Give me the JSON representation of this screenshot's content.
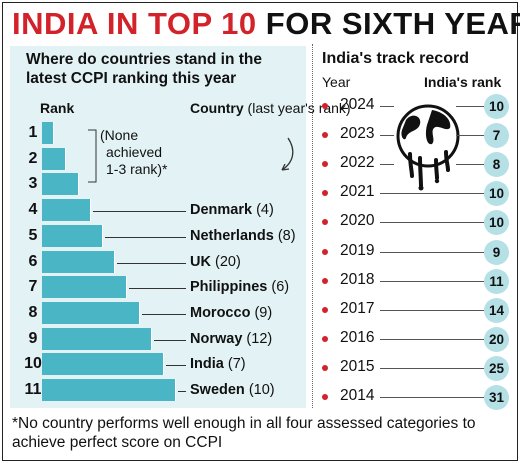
{
  "header": {
    "title_red": "INDIA IN TOP 10",
    "title_black": "FOR SIXTH YEAR"
  },
  "left_panel": {
    "heading": "Where do countries stand in the latest CCPI ranking this year",
    "rank_header": "Rank",
    "country_header_bold": "Country",
    "country_header_rest": " (last year's rank)",
    "none_note_line1": "(None",
    "none_note_line2": "achieved",
    "none_note_line3": "1-3 rank)*"
  },
  "right_panel": {
    "heading": "India's track record",
    "year_header": "Year",
    "rank_header": "India's rank"
  },
  "footnote": "*No country performs well enough in all four assessed categories to achieve perfect score on CCPI",
  "colors": {
    "accent": "#d2232a",
    "bar": "#4ab5c5",
    "panel": "#e3f3f5",
    "badge": "#b4e0e6"
  },
  "chart_data": [
    {
      "type": "bar",
      "title": "Where do countries stand in the latest CCPI ranking this year",
      "ranks": [
        1,
        2,
        3,
        4,
        5,
        6,
        7,
        8,
        9,
        10,
        11
      ],
      "countries": [
        {
          "rank": 4,
          "name": "Denmark",
          "last_year": "(4)"
        },
        {
          "rank": 5,
          "name": "Netherlands",
          "last_year": "(8)"
        },
        {
          "rank": 6,
          "name": "UK",
          "last_year": "(20)"
        },
        {
          "rank": 7,
          "name": "Philippines",
          "last_year": "(6)"
        },
        {
          "rank": 8,
          "name": "Morocco",
          "last_year": "(9)"
        },
        {
          "rank": 9,
          "name": "Norway",
          "last_year": "(12)"
        },
        {
          "rank": 10,
          "name": "India",
          "last_year": "(7)"
        },
        {
          "rank": 11,
          "name": "Sweden",
          "last_year": "(10)"
        }
      ]
    },
    {
      "type": "table",
      "title": "India's track record",
      "years": [
        "2024",
        "2023",
        "2022",
        "2021",
        "2020",
        "2019",
        "2018",
        "2017",
        "2016",
        "2015",
        "2014"
      ],
      "ranks": [
        "10",
        "7",
        "8",
        "10",
        "10",
        "9",
        "11",
        "14",
        "20",
        "25",
        "31"
      ]
    }
  ]
}
